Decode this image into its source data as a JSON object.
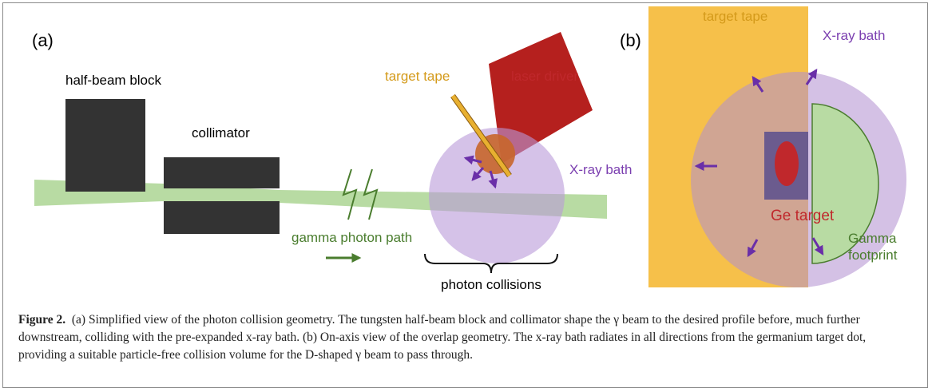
{
  "panel_a": {
    "label": "(a)",
    "half_beam_block": "half-beam block",
    "collimator": "collimator",
    "target_tape": "target tape",
    "laser_driver": "laser driver",
    "xray_bath": "X-ray bath",
    "gamma_path": "gamma photon path",
    "photon_collisions": "photon collisions"
  },
  "panel_b": {
    "label": "(b)",
    "target_tape": "target tape",
    "xray_bath": "X-ray bath",
    "ge_target": "Ge target",
    "gamma_footprint": [
      "Gamma",
      "footprint"
    ]
  },
  "caption": {
    "label": "Figure 2.",
    "text": "(a) Simplified view of the photon collision geometry. The tungsten half-beam block and collimator shape the γ beam to the desired profile before, much further downstream, colliding with the pre-expanded x-ray bath. (b) On-axis view of the overlap geometry. The x-ray bath radiates in all directions from the germanium target dot, providing a suitable particle-free collision volume for the D-shaped γ beam to pass through."
  }
}
